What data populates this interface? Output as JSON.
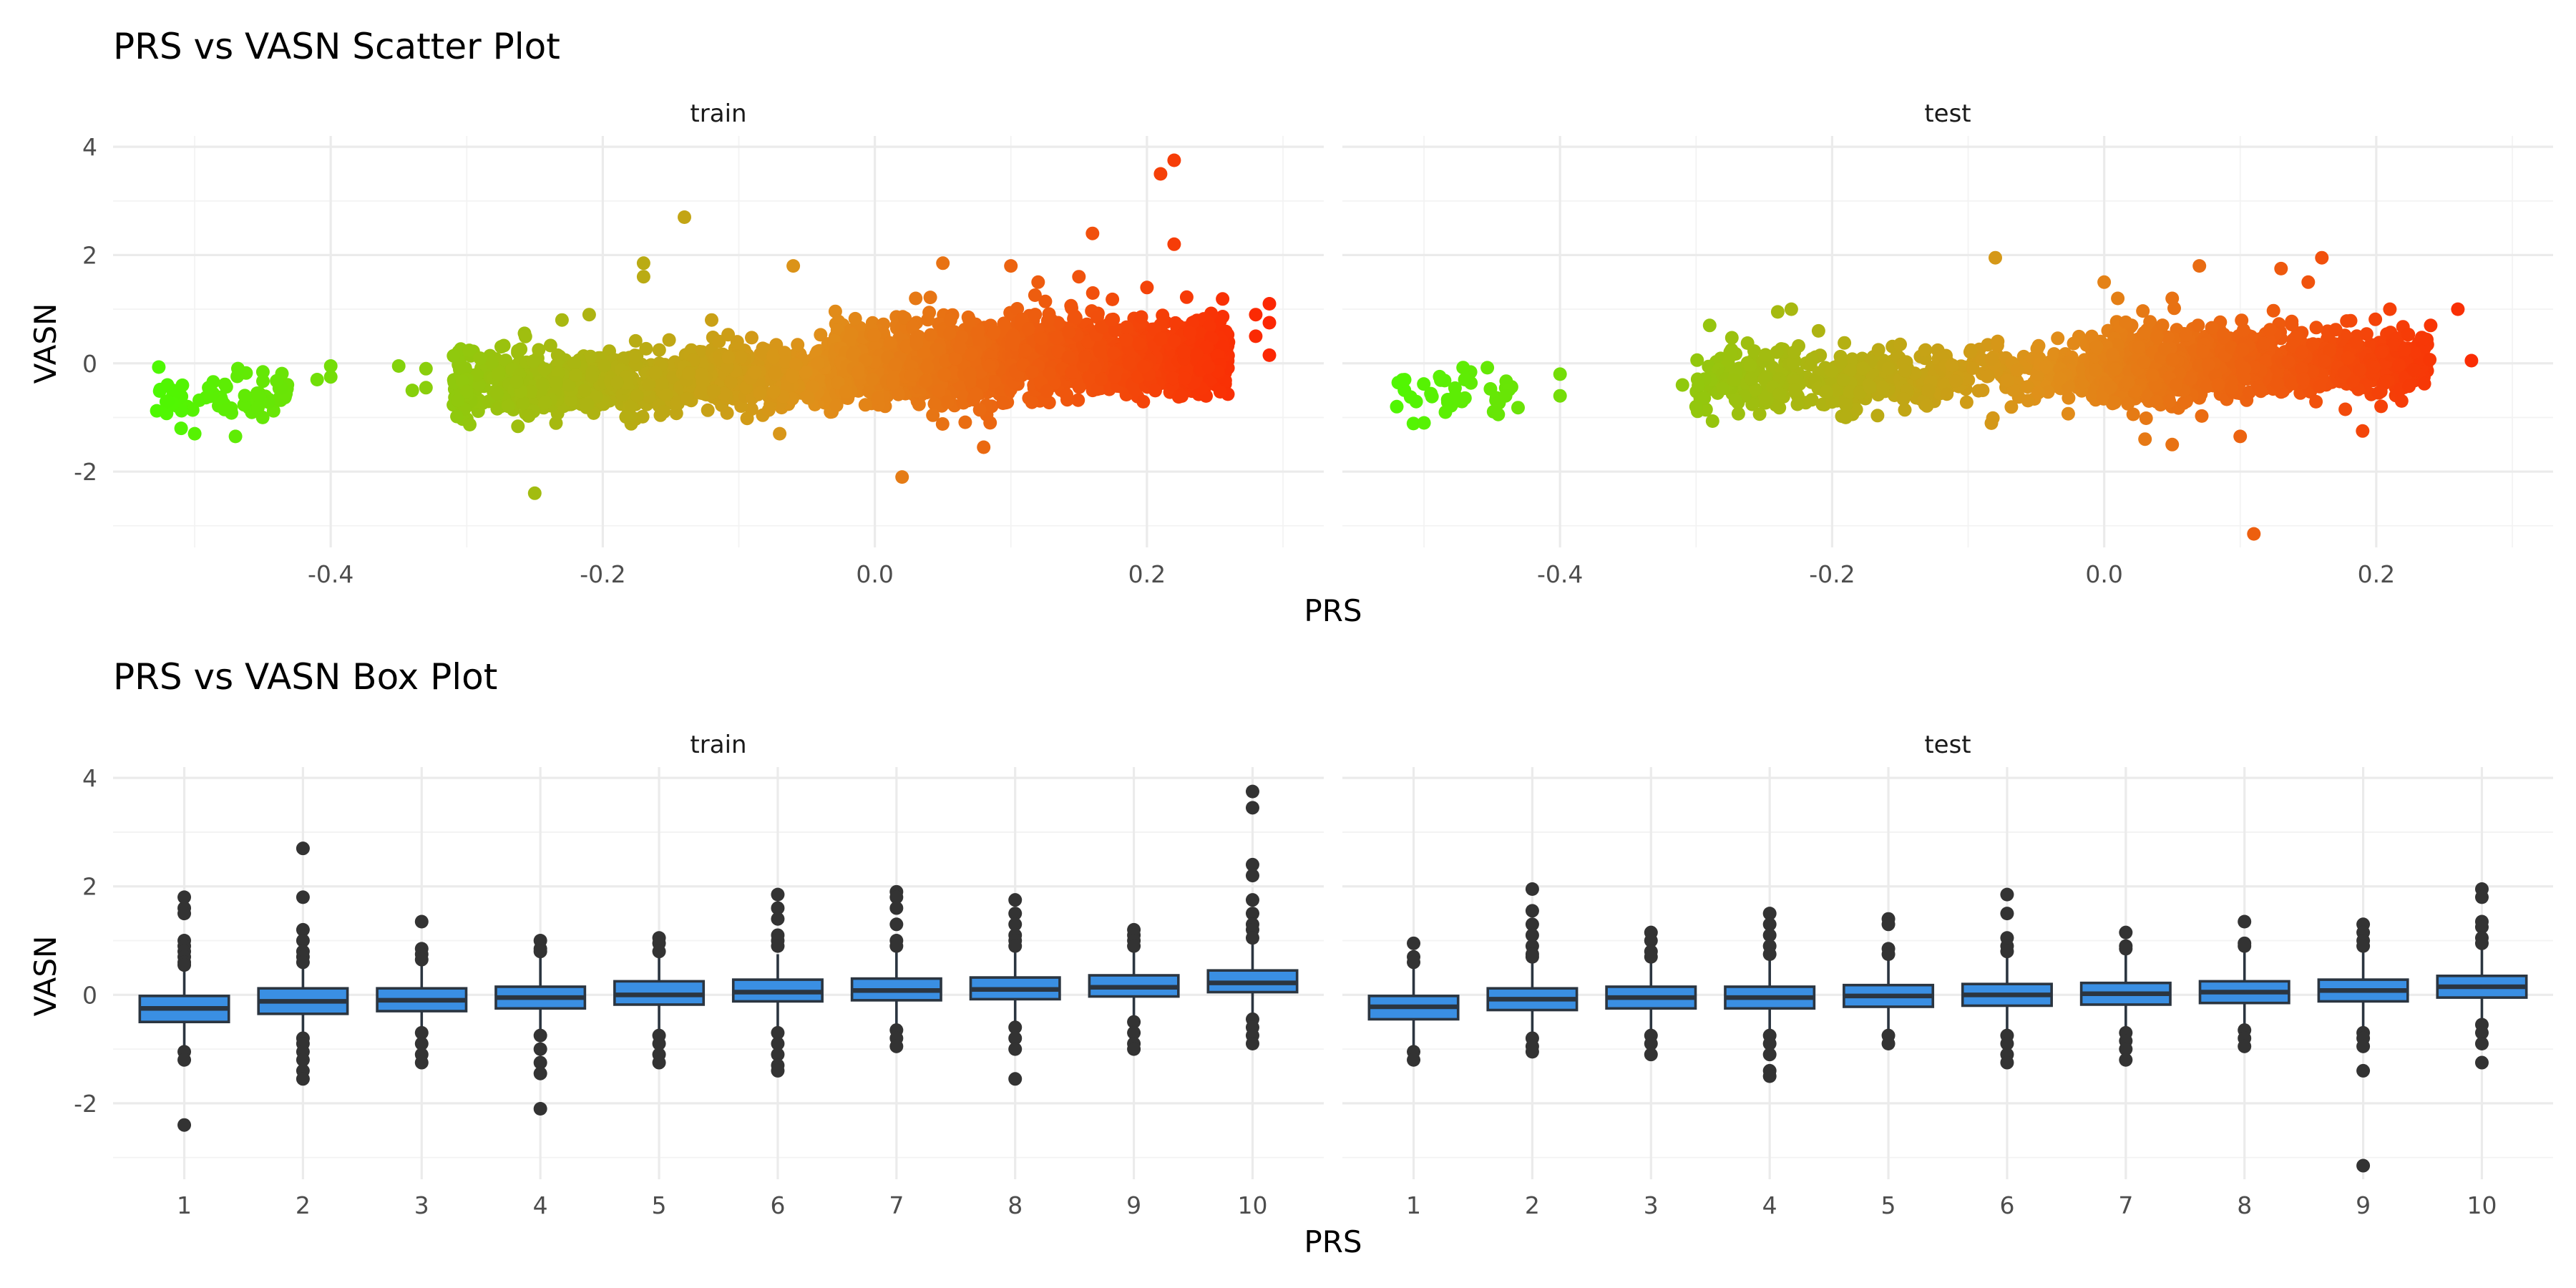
{
  "chart_data": [
    {
      "type": "scatter",
      "title": "PRS vs VASN Scatter Plot",
      "xlabel": "PRS",
      "ylabel": "VASN",
      "facets": [
        "train",
        "test"
      ],
      "xlim": [
        -0.56,
        0.33
      ],
      "ylim": [
        -3.4,
        4.2
      ],
      "x_ticks": [
        -0.4,
        -0.2,
        0.0,
        0.2
      ],
      "x_tick_labels": [
        "-0.4",
        "-0.2",
        "0.0",
        "0.2"
      ],
      "y_ticks": [
        -2,
        0,
        2,
        4
      ],
      "y_tick_labels": [
        "-2",
        "0",
        "2",
        "4"
      ],
      "color_gradient": {
        "low": "#44ff00",
        "mid": "#e0901a",
        "high": "#ff1a00",
        "mapped_to": "PRS"
      },
      "grid": true,
      "legend": "none",
      "clusters": {
        "train": [
          {
            "x_range": [
              -0.53,
              -0.43
            ],
            "y_mean": -0.6,
            "y_sd": 0.22,
            "n": 70
          },
          {
            "x_range": [
              -0.31,
              -0.14
            ],
            "y_mean": -0.38,
            "y_sd": 0.3,
            "n": 520
          },
          {
            "x_range": [
              -0.14,
              -0.03
            ],
            "y_mean": -0.22,
            "y_sd": 0.3,
            "n": 380
          },
          {
            "x_range": [
              -0.03,
              0.1
            ],
            "y_mean": 0.0,
            "y_sd": 0.35,
            "n": 900
          },
          {
            "x_range": [
              0.1,
              0.26
            ],
            "y_mean": 0.15,
            "y_sd": 0.33,
            "n": 1100
          }
        ],
        "test": [
          {
            "x_range": [
              -0.52,
              -0.43
            ],
            "y_mean": -0.55,
            "y_sd": 0.23,
            "n": 38
          },
          {
            "x_range": [
              -0.3,
              -0.12
            ],
            "y_mean": -0.3,
            "y_sd": 0.28,
            "n": 330
          },
          {
            "x_range": [
              -0.12,
              -0.01
            ],
            "y_mean": -0.15,
            "y_sd": 0.28,
            "n": 160
          },
          {
            "x_range": [
              -0.01,
              0.1
            ],
            "y_mean": -0.05,
            "y_sd": 0.33,
            "n": 650
          },
          {
            "x_range": [
              0.1,
              0.24
            ],
            "y_mean": 0.05,
            "y_sd": 0.3,
            "n": 520
          }
        ]
      },
      "outliers": {
        "train": [
          [
            -0.52,
            -0.4
          ],
          [
            -0.52,
            -0.7
          ],
          [
            -0.51,
            -1.2
          ],
          [
            -0.5,
            -1.3
          ],
          [
            -0.47,
            -1.35
          ],
          [
            -0.45,
            -1.0
          ],
          [
            -0.41,
            -0.3
          ],
          [
            -0.4,
            -0.05
          ],
          [
            -0.4,
            -0.25
          ],
          [
            -0.35,
            -0.05
          ],
          [
            -0.34,
            -0.5
          ],
          [
            -0.33,
            -0.45
          ],
          [
            -0.33,
            -0.1
          ],
          [
            -0.25,
            -2.4
          ],
          [
            -0.23,
            0.8
          ],
          [
            -0.21,
            0.9
          ],
          [
            -0.17,
            1.85
          ],
          [
            -0.17,
            1.6
          ],
          [
            -0.14,
            2.7
          ],
          [
            -0.12,
            0.8
          ],
          [
            -0.07,
            -1.3
          ],
          [
            -0.06,
            1.8
          ],
          [
            0.02,
            -2.1
          ],
          [
            0.03,
            1.2
          ],
          [
            0.05,
            1.85
          ],
          [
            0.08,
            -1.55
          ],
          [
            0.1,
            1.8
          ],
          [
            0.12,
            1.5
          ],
          [
            0.15,
            1.6
          ],
          [
            0.16,
            2.4
          ],
          [
            0.2,
            1.4
          ],
          [
            0.21,
            3.5
          ],
          [
            0.22,
            3.75
          ],
          [
            0.22,
            2.2
          ],
          [
            0.28,
            0.9
          ],
          [
            0.29,
            1.1
          ],
          [
            0.29,
            0.75
          ],
          [
            0.29,
            0.15
          ],
          [
            0.28,
            0.5
          ]
        ],
        "test": [
          [
            -0.52,
            -0.8
          ],
          [
            -0.5,
            -1.1
          ],
          [
            -0.47,
            -0.3
          ],
          [
            -0.44,
            -0.6
          ],
          [
            -0.4,
            -0.2
          ],
          [
            -0.4,
            -0.6
          ],
          [
            -0.31,
            -0.4
          ],
          [
            -0.3,
            -0.8
          ],
          [
            -0.29,
            0.7
          ],
          [
            -0.24,
            0.95
          ],
          [
            -0.23,
            1.0
          ],
          [
            -0.21,
            0.6
          ],
          [
            -0.19,
            -1.0
          ],
          [
            -0.15,
            0.35
          ],
          [
            -0.08,
            1.95
          ],
          [
            0.0,
            1.5
          ],
          [
            0.01,
            1.2
          ],
          [
            0.03,
            -1.4
          ],
          [
            0.05,
            1.2
          ],
          [
            0.05,
            -1.5
          ],
          [
            0.07,
            1.8
          ],
          [
            0.1,
            -1.35
          ],
          [
            0.11,
            -3.15
          ],
          [
            0.13,
            1.75
          ],
          [
            0.15,
            1.5
          ],
          [
            0.16,
            1.95
          ],
          [
            0.19,
            -1.25
          ],
          [
            0.21,
            1.0
          ],
          [
            0.24,
            0.7
          ],
          [
            0.26,
            1.0
          ],
          [
            0.27,
            0.05
          ]
        ]
      }
    },
    {
      "type": "box",
      "title": "PRS vs VASN Box Plot",
      "xlabel": "PRS",
      "ylabel": "VASN",
      "facets": [
        "train",
        "test"
      ],
      "categories": [
        "1",
        "2",
        "3",
        "4",
        "5",
        "6",
        "7",
        "8",
        "9",
        "10"
      ],
      "ylim": [
        -3.4,
        4.2
      ],
      "y_ticks": [
        -2,
        0,
        2,
        4
      ],
      "y_tick_labels": [
        "-2",
        "0",
        "2",
        "4"
      ],
      "box_fill": "#3a8fe3",
      "box_edge": "#2b3540",
      "grid": true,
      "series": [
        {
          "name": "train",
          "boxes": [
            {
              "q1": -0.5,
              "median": -0.25,
              "q3": -0.02,
              "whisker_low": -1.0,
              "whisker_high": 0.45,
              "outliers": [
                1.8,
                1.6,
                1.5,
                1.0,
                0.9,
                0.8,
                0.7,
                0.6,
                0.55,
                -1.05,
                -1.2,
                -2.4
              ]
            },
            {
              "q1": -0.35,
              "median": -0.12,
              "q3": 0.12,
              "whisker_low": -0.75,
              "whisker_high": 0.5,
              "outliers": [
                2.7,
                1.8,
                1.2,
                1.0,
                0.8,
                0.7,
                0.6,
                -0.8,
                -0.9,
                -1.05,
                -1.2,
                -1.4,
                -1.55
              ]
            },
            {
              "q1": -0.3,
              "median": -0.1,
              "q3": 0.12,
              "whisker_low": -0.75,
              "whisker_high": 0.6,
              "outliers": [
                1.35,
                0.85,
                0.75,
                0.65,
                -0.7,
                -0.9,
                -1.1,
                -1.25
              ]
            },
            {
              "q1": -0.25,
              "median": -0.05,
              "q3": 0.15,
              "whisker_low": -0.8,
              "whisker_high": 0.72,
              "outliers": [
                1.0,
                0.85,
                0.8,
                -0.75,
                -1.0,
                -1.25,
                -1.45,
                -2.1
              ]
            },
            {
              "q1": -0.18,
              "median": 0.0,
              "q3": 0.25,
              "whisker_low": -0.7,
              "whisker_high": 0.72,
              "outliers": [
                1.05,
                0.95,
                0.8,
                -0.75,
                -0.9,
                -1.1,
                -1.25
              ]
            },
            {
              "q1": -0.12,
              "median": 0.05,
              "q3": 0.28,
              "whisker_low": -0.65,
              "whisker_high": 0.75,
              "outliers": [
                1.85,
                1.6,
                1.4,
                1.1,
                1.0,
                0.9,
                -0.7,
                -0.9,
                -1.1,
                -1.3,
                -1.4
              ]
            },
            {
              "q1": -0.1,
              "median": 0.08,
              "q3": 0.3,
              "whisker_low": -0.6,
              "whisker_high": 0.85,
              "outliers": [
                1.9,
                1.8,
                1.6,
                1.3,
                1.0,
                0.9,
                -0.65,
                -0.8,
                -0.95
              ]
            },
            {
              "q1": -0.08,
              "median": 0.1,
              "q3": 0.32,
              "whisker_low": -0.55,
              "whisker_high": 0.85,
              "outliers": [
                1.75,
                1.5,
                1.3,
                1.1,
                1.0,
                0.9,
                -0.6,
                -0.8,
                -1.0,
                -1.55
              ]
            },
            {
              "q1": -0.03,
              "median": 0.14,
              "q3": 0.36,
              "whisker_low": -0.5,
              "whisker_high": 0.85,
              "outliers": [
                1.2,
                1.1,
                1.0,
                0.9,
                -0.5,
                -0.7,
                -0.9,
                -1.0
              ]
            },
            {
              "q1": 0.05,
              "median": 0.22,
              "q3": 0.45,
              "whisker_low": -0.4,
              "whisker_high": 0.95,
              "outliers": [
                3.75,
                3.45,
                2.4,
                2.2,
                1.75,
                1.5,
                1.3,
                1.2,
                1.05,
                -0.45,
                -0.6,
                -0.75,
                -0.9
              ]
            }
          ]
        },
        {
          "name": "test",
          "boxes": [
            {
              "q1": -0.45,
              "median": -0.22,
              "q3": -0.02,
              "whisker_low": -1.0,
              "whisker_high": 0.5,
              "outliers": [
                0.95,
                0.7,
                0.6,
                -1.05,
                -1.2
              ]
            },
            {
              "q1": -0.28,
              "median": -0.08,
              "q3": 0.12,
              "whisker_low": -0.75,
              "whisker_high": 0.6,
              "outliers": [
                1.95,
                1.55,
                1.3,
                1.1,
                0.9,
                0.75,
                0.7,
                -0.8,
                -0.95,
                -1.05
              ]
            },
            {
              "q1": -0.25,
              "median": -0.05,
              "q3": 0.15,
              "whisker_low": -0.7,
              "whisker_high": 0.65,
              "outliers": [
                1.15,
                1.0,
                0.8,
                0.7,
                -0.75,
                -0.9,
                -1.1
              ]
            },
            {
              "q1": -0.25,
              "median": -0.05,
              "q3": 0.15,
              "whisker_low": -0.7,
              "whisker_high": 0.65,
              "outliers": [
                1.5,
                1.3,
                1.1,
                0.9,
                0.75,
                -0.75,
                -0.9,
                -1.1,
                -1.4,
                -1.5
              ]
            },
            {
              "q1": -0.22,
              "median": -0.02,
              "q3": 0.18,
              "whisker_low": -0.7,
              "whisker_high": 0.7,
              "outliers": [
                1.4,
                1.3,
                0.85,
                0.75,
                -0.75,
                -0.9
              ]
            },
            {
              "q1": -0.2,
              "median": 0.0,
              "q3": 0.2,
              "whisker_low": -0.7,
              "whisker_high": 0.72,
              "outliers": [
                1.85,
                1.5,
                1.05,
                0.9,
                0.8,
                -0.75,
                -0.9,
                -1.1,
                -1.25
              ]
            },
            {
              "q1": -0.18,
              "median": 0.02,
              "q3": 0.22,
              "whisker_low": -0.65,
              "whisker_high": 0.75,
              "outliers": [
                1.15,
                0.9,
                0.85,
                -0.7,
                -0.85,
                -1.0,
                -1.2
              ]
            },
            {
              "q1": -0.15,
              "median": 0.05,
              "q3": 0.25,
              "whisker_low": -0.6,
              "whisker_high": 0.8,
              "outliers": [
                1.35,
                0.95,
                0.9,
                -0.65,
                -0.8,
                -0.95
              ]
            },
            {
              "q1": -0.12,
              "median": 0.08,
              "q3": 0.28,
              "whisker_low": -0.6,
              "whisker_high": 0.85,
              "outliers": [
                1.3,
                1.15,
                1.0,
                0.9,
                -0.7,
                -0.8,
                -0.95,
                -1.4,
                -3.15
              ]
            },
            {
              "q1": -0.05,
              "median": 0.15,
              "q3": 0.35,
              "whisker_low": -0.5,
              "whisker_high": 0.9,
              "outliers": [
                1.95,
                1.8,
                1.35,
                1.25,
                1.05,
                0.95,
                -0.55,
                -0.7,
                -0.9,
                -1.25
              ]
            }
          ]
        }
      ]
    }
  ]
}
